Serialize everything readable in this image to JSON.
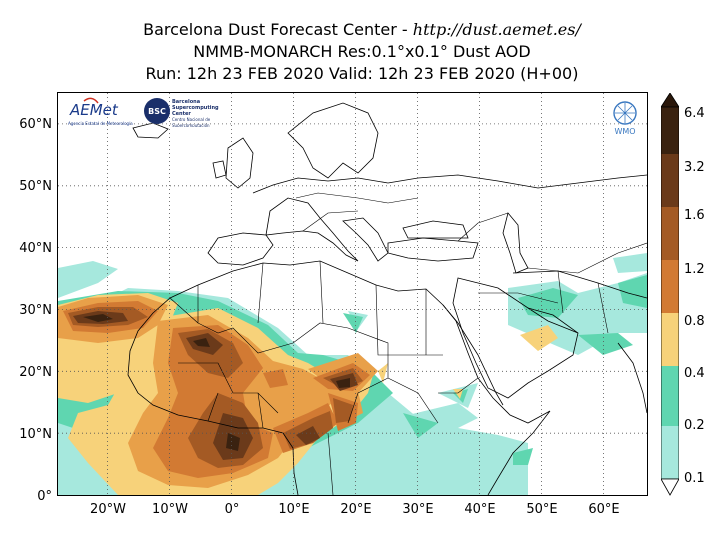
{
  "title": {
    "line1_prefix": "Barcelona Dust Forecast Center - ",
    "line1_url": "http://dust.aemet.es/",
    "line2": "NMMB-MONARCH   Res:0.1°x0.1°   Dust AOD",
    "line3": "Run: 12h 23 FEB 2020   Valid: 12h 23 FEB 2020 (H+00)"
  },
  "axes": {
    "lon_range": [
      -28,
      67
    ],
    "lat_range": [
      0,
      65
    ],
    "x_ticks": [
      {
        "value": -20,
        "label": "20°W"
      },
      {
        "value": -10,
        "label": "10°W"
      },
      {
        "value": 0,
        "label": "0°"
      },
      {
        "value": 10,
        "label": "10°E"
      },
      {
        "value": 20,
        "label": "20°E"
      },
      {
        "value": 30,
        "label": "30°E"
      },
      {
        "value": 40,
        "label": "40°E"
      },
      {
        "value": 50,
        "label": "50°E"
      },
      {
        "value": 60,
        "label": "60°E"
      }
    ],
    "y_ticks": [
      {
        "value": 0,
        "label": "0°"
      },
      {
        "value": 10,
        "label": "10°N"
      },
      {
        "value": 20,
        "label": "20°N"
      },
      {
        "value": 30,
        "label": "30°N"
      },
      {
        "value": 40,
        "label": "40°N"
      },
      {
        "value": 50,
        "label": "50°N"
      },
      {
        "value": 60,
        "label": "60°N"
      }
    ],
    "grid": "dotted"
  },
  "colorbar": {
    "levels": [
      "0.1",
      "0.2",
      "0.4",
      "0.8",
      "1.2",
      "1.6",
      "3.2",
      "6.4"
    ],
    "colors": [
      "#a6e8dd",
      "#5fd6b0",
      "#f7d27a",
      "#e8a049",
      "#d27a33",
      "#a45a24",
      "#6b3a1a",
      "#3a2210"
    ],
    "extend": "both"
  },
  "logos": {
    "aemet": "AEMet",
    "aemet_sub": "Agencia Estatal de Meteorología",
    "bsc": "BSC",
    "bsc_text": "Barcelona Supercomputing Center",
    "bsc_sub": "Centro Nacional de Supercomputación",
    "wmo": "WMO"
  }
}
